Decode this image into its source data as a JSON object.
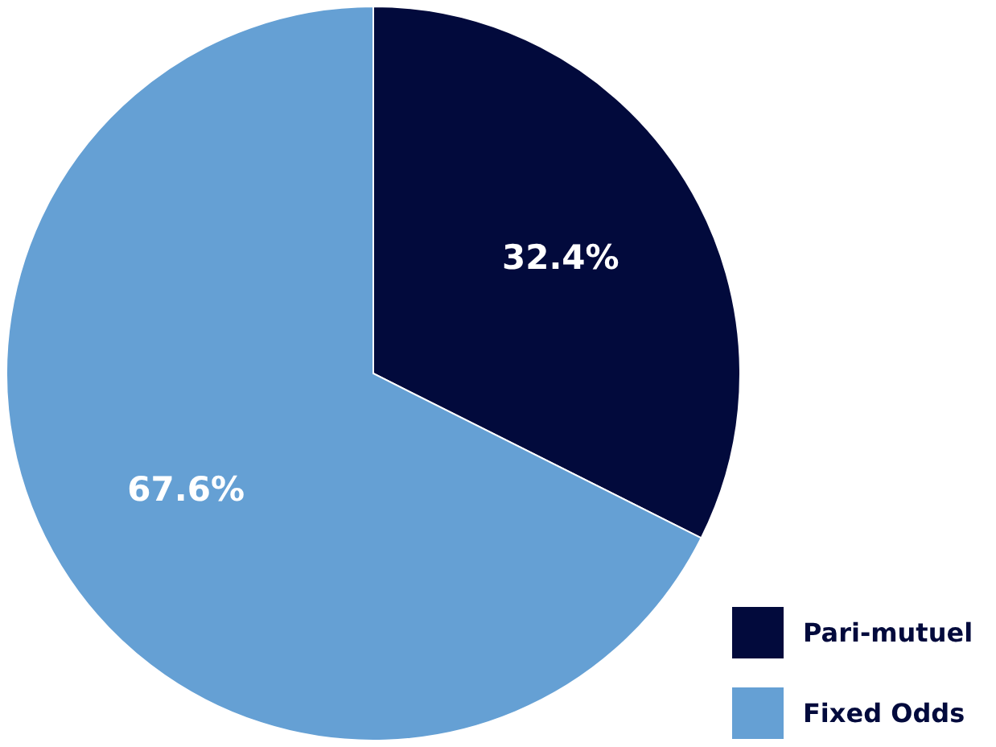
{
  "chart_data": {
    "type": "pie",
    "categories": [
      "Pari-mutuel",
      "Fixed Odds"
    ],
    "values": [
      32.4,
      67.6
    ],
    "colors": [
      "#020a3c",
      "#65a0d4"
    ],
    "value_labels": [
      "32.4%",
      "67.6%"
    ],
    "legend": "bottom right"
  }
}
